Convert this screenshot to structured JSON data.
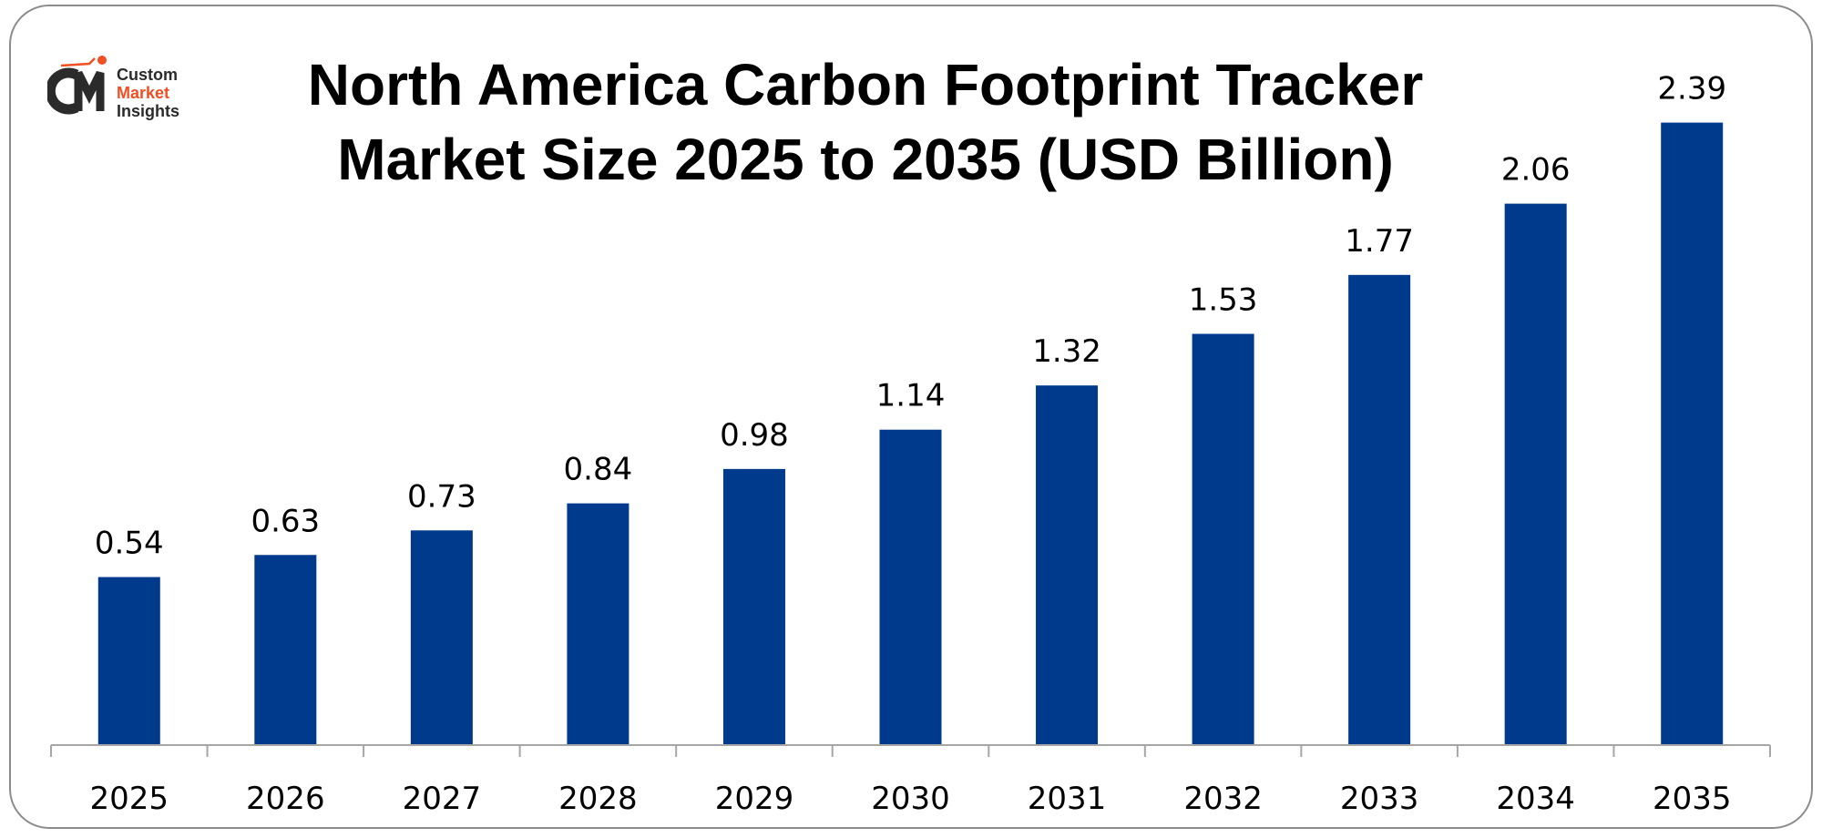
{
  "logo": {
    "line1": "Custom",
    "line2": "Market",
    "line3": "Insights",
    "mark": "CMI"
  },
  "colors": {
    "bar": "#003A8C",
    "axis": "#a6a6a6",
    "logo_dark": "#2b2b2b",
    "logo_accent": "#f04e23"
  },
  "chart_data": {
    "type": "bar",
    "title_line1": "North America Carbon Footprint Tracker",
    "title_line2": "Market Size 2025 to 2035 (USD Billion)",
    "categories": [
      "2025",
      "2026",
      "2027",
      "2028",
      "2029",
      "2030",
      "2031",
      "2032",
      "2033",
      "2034",
      "2035"
    ],
    "values": [
      0.54,
      0.63,
      0.73,
      0.84,
      0.98,
      1.14,
      1.32,
      1.53,
      1.77,
      2.06,
      2.39
    ],
    "data_labels": [
      "0.54",
      "0.63",
      "0.73",
      "0.84",
      "0.98",
      "1.14",
      "1.32",
      "1.53",
      "1.77",
      "2.06",
      "2.39"
    ],
    "xlabel": "",
    "ylabel": "",
    "ylim": [
      -0.144,
      2.7
    ],
    "grid": false,
    "legend": "none"
  }
}
